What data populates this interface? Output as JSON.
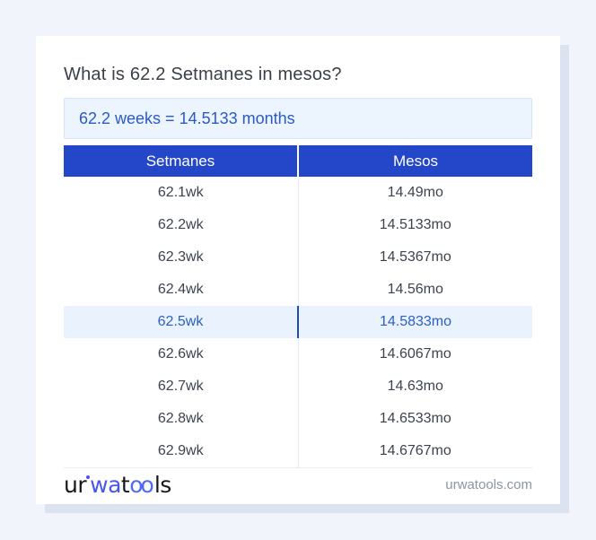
{
  "page": {
    "background_color": "#f1f4fa",
    "card_shadow_color": "#dbe2f0",
    "title": "What is 62.2 Setmanes in mesos?",
    "answer_text": "62.2 weeks = 14.5133 months",
    "answer_box_bg": "#ecf4fe",
    "answer_text_color": "#2b5ac6"
  },
  "table": {
    "headers": [
      "Setmanes",
      "Mesos"
    ],
    "header_bg_color": "#2347c8",
    "header_text_color": "#ffffff",
    "highlight_row_bg": "#eaf3fd",
    "highlight_text_color": "#2c5fc2",
    "rows": [
      {
        "setmanes": "62.1wk",
        "mesos": "14.49mo",
        "highlighted": false
      },
      {
        "setmanes": "62.2wk",
        "mesos": "14.5133mo",
        "highlighted": false
      },
      {
        "setmanes": "62.3wk",
        "mesos": "14.5367mo",
        "highlighted": false
      },
      {
        "setmanes": "62.4wk",
        "mesos": "14.56mo",
        "highlighted": false
      },
      {
        "setmanes": "62.5wk",
        "mesos": "14.5833mo",
        "highlighted": true
      },
      {
        "setmanes": "62.6wk",
        "mesos": "14.6067mo",
        "highlighted": false
      },
      {
        "setmanes": "62.7wk",
        "mesos": "14.63mo",
        "highlighted": false
      },
      {
        "setmanes": "62.8wk",
        "mesos": "14.6533mo",
        "highlighted": false
      },
      {
        "setmanes": "62.9wk",
        "mesos": "14.6767mo",
        "highlighted": false
      }
    ]
  },
  "footer": {
    "logo": {
      "part_ur": "ur",
      "part_wa": "wa",
      "part_t": "t",
      "part_oo": "oo",
      "part_ls": "ls",
      "blue_color": "#4656ee"
    },
    "domain": "urwatools.com"
  }
}
